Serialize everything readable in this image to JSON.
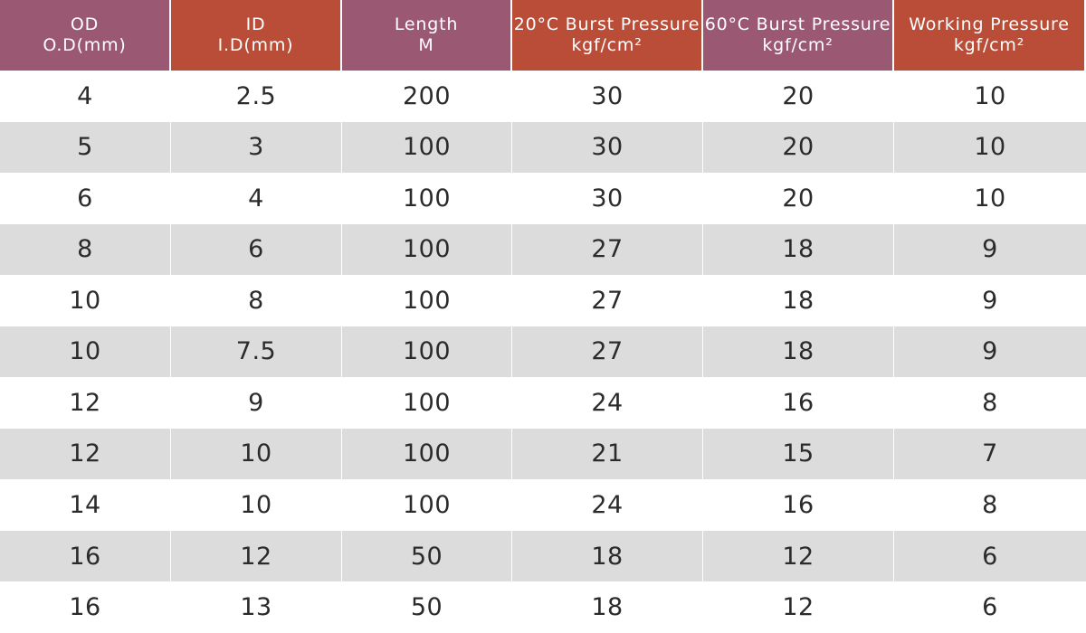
{
  "header": {
    "columns": [
      {
        "line1": "OD",
        "line2": "O.D(mm)",
        "tone": "purple"
      },
      {
        "line1": "ID",
        "line2": "I.D(mm)",
        "tone": "red"
      },
      {
        "line1": "Length",
        "line2": "M",
        "tone": "purple"
      },
      {
        "line1": "20°C Burst Pressure",
        "line2": "kgf/cm²",
        "tone": "red"
      },
      {
        "line1": "60°C Burst Pressure",
        "line2": "kgf/cm²",
        "tone": "purple"
      },
      {
        "line1": "Working Pressure",
        "line2": "kgf/cm²",
        "tone": "red"
      }
    ],
    "colors": {
      "purple": "#9b5872",
      "red": "#b94d38"
    }
  },
  "rows": [
    [
      "4",
      "2.5",
      "200",
      "30",
      "20",
      "10"
    ],
    [
      "5",
      "3",
      "100",
      "30",
      "20",
      "10"
    ],
    [
      "6",
      "4",
      "100",
      "30",
      "20",
      "10"
    ],
    [
      "8",
      "6",
      "100",
      "27",
      "18",
      "9"
    ],
    [
      "10",
      "8",
      "100",
      "27",
      "18",
      "9"
    ],
    [
      "10",
      "7.5",
      "100",
      "27",
      "18",
      "9"
    ],
    [
      "12",
      "9",
      "100",
      "24",
      "16",
      "8"
    ],
    [
      "12",
      "10",
      "100",
      "21",
      "15",
      "7"
    ],
    [
      "14",
      "10",
      "100",
      "24",
      "16",
      "8"
    ],
    [
      "16",
      "12",
      "50",
      "18",
      "12",
      "6"
    ],
    [
      "16",
      "13",
      "50",
      "18",
      "12",
      "6"
    ]
  ],
  "stripe_color": "#dcdcdc"
}
